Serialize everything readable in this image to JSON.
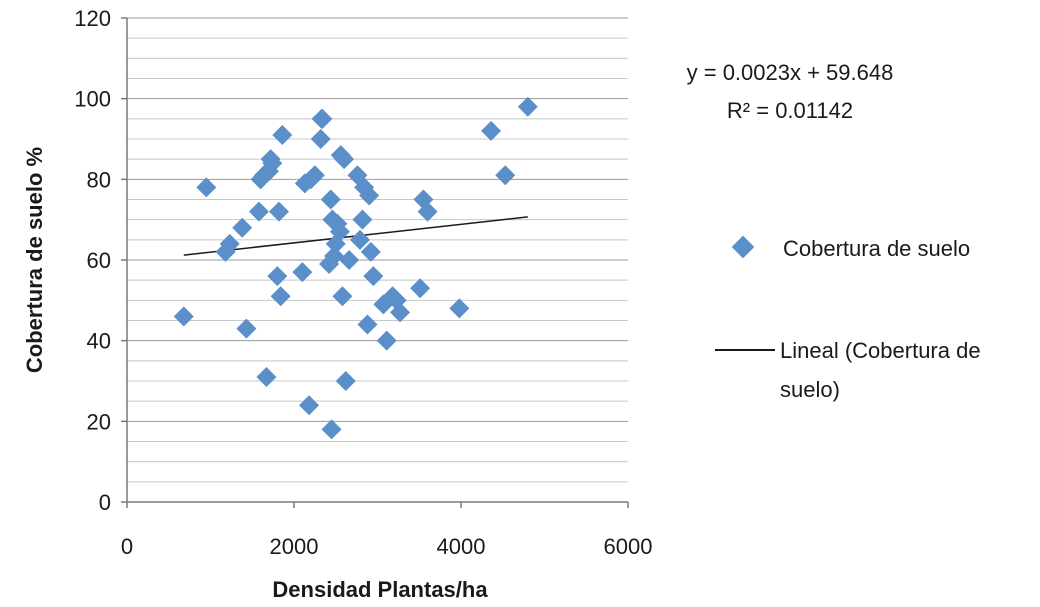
{
  "chart_data": {
    "type": "scatter",
    "title": "",
    "xlabel": "Densidad Plantas/ha",
    "ylabel": "Cobertura de suelo %",
    "xlim": [
      0,
      6000
    ],
    "ylim": [
      0,
      120
    ],
    "x_ticks": [
      "0",
      "2000",
      "4000",
      "6000"
    ],
    "y_ticks": [
      "0",
      "20",
      "40",
      "60",
      "80",
      "100",
      "120"
    ],
    "grid": "horizontal",
    "legend_position": "right",
    "marker_color": "#5b8fc9",
    "trendline_color": "#1a1a1a",
    "series": [
      {
        "name": "Cobertura de suelo",
        "x": [
          680,
          950,
          1180,
          1230,
          1380,
          1430,
          1580,
          1600,
          1640,
          1670,
          1700,
          1720,
          1740,
          1800,
          1820,
          1840,
          1860,
          2100,
          2130,
          2180,
          2200,
          2250,
          2320,
          2330,
          2340,
          2420,
          2440,
          2450,
          2460,
          2480,
          2500,
          2520,
          2550,
          2560,
          2580,
          2600,
          2620,
          2660,
          2760,
          2790,
          2820,
          2840,
          2880,
          2900,
          2920,
          2950,
          3070,
          3110,
          3180,
          3230,
          3270,
          3510,
          3550,
          3600,
          3980,
          4360,
          4530,
          4800
        ],
        "y": [
          46,
          78,
          62,
          64,
          68,
          43,
          72,
          80,
          81,
          31,
          82,
          85,
          84,
          56,
          72,
          51,
          91,
          57,
          79,
          24,
          80,
          81,
          90,
          95,
          95,
          59,
          75,
          18,
          70,
          61,
          64,
          69,
          67,
          86,
          51,
          85,
          30,
          60,
          81,
          65,
          70,
          78,
          44,
          76,
          62,
          56,
          49,
          40,
          51,
          50,
          47,
          53,
          75,
          72,
          48,
          92,
          81,
          98
        ]
      }
    ],
    "trendline": {
      "name": "Lineal (Cobertura de suelo)",
      "slope": 0.0023,
      "intercept": 59.648,
      "x_start": 680,
      "x_end": 4800,
      "equation": "y = 0.0023x + 59.648",
      "r_squared": "R² = 0.01142"
    },
    "legend": {
      "marker_label": "Cobertura de suelo",
      "line_label_1": "Lineal (Cobertura de",
      "line_label_2": "suelo)"
    }
  }
}
